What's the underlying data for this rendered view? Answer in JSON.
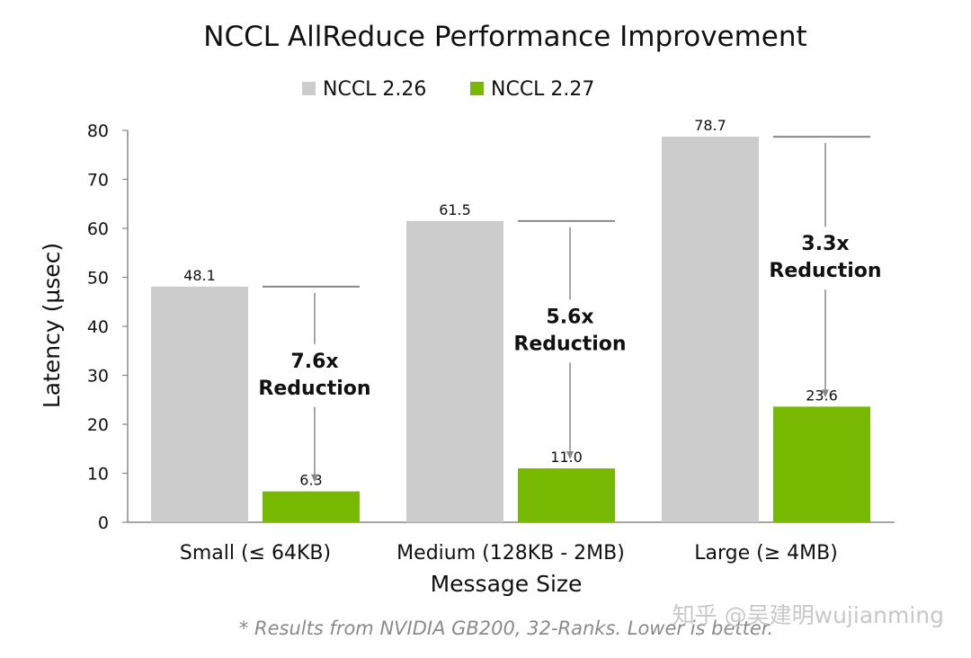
{
  "chart_data": {
    "type": "bar",
    "title": "NCCL AllReduce Performance Improvement",
    "xlabel": "Message Size",
    "ylabel": "Latency (µsec)",
    "ylim": [
      0,
      80
    ],
    "yticks": [
      0,
      10,
      20,
      30,
      40,
      50,
      60,
      70,
      80
    ],
    "grid": false,
    "legend_position": "top-center",
    "categories": [
      "Small (≤ 64KB)",
      "Medium (128KB - 2MB)",
      "Large (≥ 4MB)"
    ],
    "series": [
      {
        "name": "NCCL 2.26",
        "color": "#cccccc",
        "values": [
          48.1,
          61.5,
          78.7
        ],
        "labels": [
          "48.1",
          "61.5",
          "78.7"
        ]
      },
      {
        "name": "NCCL 2.27",
        "color": "#76b900",
        "values": [
          6.3,
          11.0,
          23.6
        ],
        "labels": [
          "6.3",
          "11.0",
          "23.6"
        ]
      }
    ],
    "annotations": [
      {
        "line1": "7.6x",
        "line2": "Reduction"
      },
      {
        "line1": "5.6x",
        "line2": "Reduction"
      },
      {
        "line1": "3.3x",
        "line2": "Reduction"
      }
    ]
  },
  "footnote": "* Results from NVIDIA GB200, 32-Ranks. Lower is better.",
  "watermark": "知乎 @吴建明wujianming"
}
